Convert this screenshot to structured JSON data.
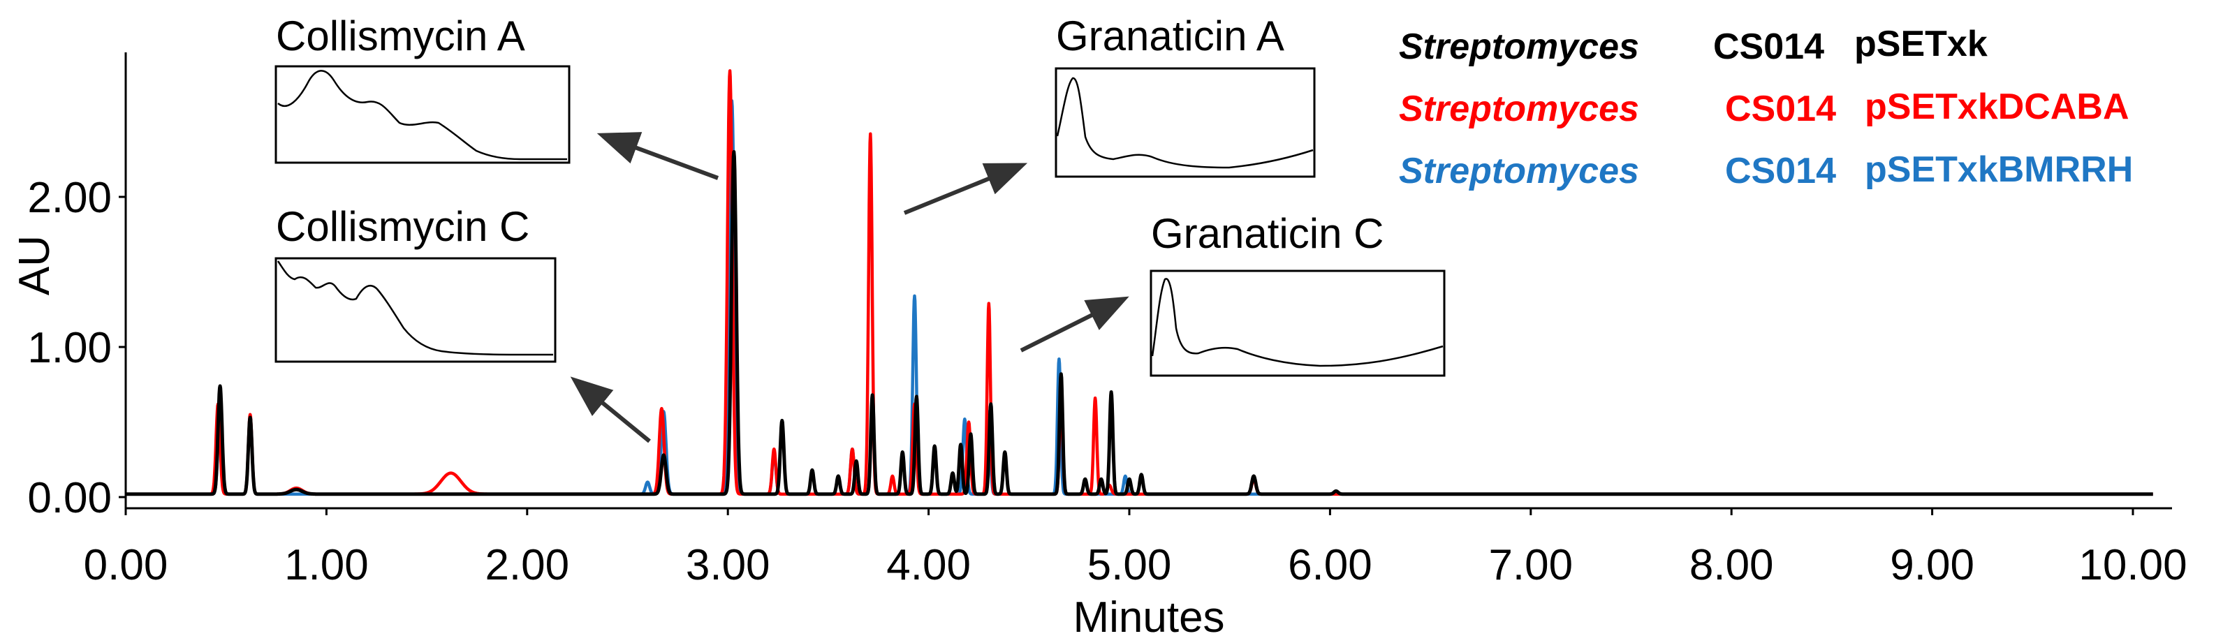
{
  "chart_data": {
    "type": "line",
    "title": "",
    "xlabel": "Minutes",
    "ylabel": "AU",
    "xlim": [
      0,
      10.1
    ],
    "ylim": [
      -0.05,
      2.95
    ],
    "x_ticks": [
      "0.00",
      "1.00",
      "2.00",
      "3.00",
      "4.00",
      "5.00",
      "6.00",
      "7.00",
      "8.00",
      "9.00",
      "10.00"
    ],
    "y_ticks": [
      "0.00",
      "1.00",
      "2.00"
    ],
    "grid": false,
    "legend": {
      "position": "top-right",
      "entries": [
        {
          "genus": "Streptomyces",
          "strain": "CS014",
          "plasmid": "pSETxk",
          "color": "#000000"
        },
        {
          "genus": "Streptomyces",
          "strain": "CS014",
          "plasmid": "pSETxkDCABA",
          "color": "#ff0000"
        },
        {
          "genus": "Streptomyces",
          "strain": "CS014",
          "plasmid": "pSETxkBMRRH",
          "color": "#1f77c4"
        }
      ]
    },
    "series": [
      {
        "name": "Streptomyces CS014 pSETxkBMRRH",
        "color": "#1f77c4",
        "baseline": 0.02,
        "peaks": [
          {
            "x": 0.47,
            "h": 0.62,
            "w": 0.01
          },
          {
            "x": 0.62,
            "h": 0.52,
            "w": 0.009
          },
          {
            "x": 2.6,
            "h": 0.08,
            "w": 0.01
          },
          {
            "x": 2.68,
            "h": 0.55,
            "w": 0.012
          },
          {
            "x": 3.02,
            "h": 2.62,
            "w": 0.012
          },
          {
            "x": 3.23,
            "h": 0.28,
            "w": 0.009
          },
          {
            "x": 3.62,
            "h": 0.3,
            "w": 0.009
          },
          {
            "x": 3.72,
            "h": 0.62,
            "w": 0.008
          },
          {
            "x": 3.93,
            "h": 1.32,
            "w": 0.009
          },
          {
            "x": 4.18,
            "h": 0.5,
            "w": 0.009
          },
          {
            "x": 4.3,
            "h": 0.55,
            "w": 0.008
          },
          {
            "x": 4.65,
            "h": 0.9,
            "w": 0.008
          },
          {
            "x": 4.98,
            "h": 0.12,
            "w": 0.008
          }
        ]
      },
      {
        "name": "Streptomyces CS014 pSETxkDCABA",
        "color": "#ff0000",
        "baseline": 0.02,
        "peaks": [
          {
            "x": 0.46,
            "h": 0.6,
            "w": 0.01
          },
          {
            "x": 0.62,
            "h": 0.53,
            "w": 0.009
          },
          {
            "x": 0.85,
            "h": 0.04,
            "w": 0.03
          },
          {
            "x": 1.62,
            "h": 0.14,
            "w": 0.05
          },
          {
            "x": 2.67,
            "h": 0.57,
            "w": 0.012
          },
          {
            "x": 3.01,
            "h": 2.82,
            "w": 0.012
          },
          {
            "x": 3.23,
            "h": 0.3,
            "w": 0.009
          },
          {
            "x": 3.62,
            "h": 0.3,
            "w": 0.009
          },
          {
            "x": 3.71,
            "h": 2.4,
            "w": 0.009
          },
          {
            "x": 3.82,
            "h": 0.12,
            "w": 0.008
          },
          {
            "x": 3.93,
            "h": 0.6,
            "w": 0.009
          },
          {
            "x": 4.2,
            "h": 0.48,
            "w": 0.009
          },
          {
            "x": 4.3,
            "h": 1.27,
            "w": 0.008
          },
          {
            "x": 4.66,
            "h": 0.62,
            "w": 0.008
          },
          {
            "x": 4.83,
            "h": 0.64,
            "w": 0.008
          },
          {
            "x": 4.9,
            "h": 0.06,
            "w": 0.01
          },
          {
            "x": 5.62,
            "h": 0.1,
            "w": 0.01
          }
        ]
      },
      {
        "name": "Streptomyces CS014 pSETxk",
        "color": "#000000",
        "baseline": 0.02,
        "peaks": [
          {
            "x": 0.47,
            "h": 0.72,
            "w": 0.01
          },
          {
            "x": 0.62,
            "h": 0.51,
            "w": 0.009
          },
          {
            "x": 0.85,
            "h": 0.03,
            "w": 0.03
          },
          {
            "x": 2.68,
            "h": 0.26,
            "w": 0.012
          },
          {
            "x": 3.03,
            "h": 2.28,
            "w": 0.012
          },
          {
            "x": 3.27,
            "h": 0.49,
            "w": 0.009
          },
          {
            "x": 3.42,
            "h": 0.16,
            "w": 0.008
          },
          {
            "x": 3.55,
            "h": 0.12,
            "w": 0.008
          },
          {
            "x": 3.64,
            "h": 0.22,
            "w": 0.008
          },
          {
            "x": 3.72,
            "h": 0.66,
            "w": 0.008
          },
          {
            "x": 3.87,
            "h": 0.28,
            "w": 0.008
          },
          {
            "x": 3.94,
            "h": 0.65,
            "w": 0.008
          },
          {
            "x": 4.03,
            "h": 0.32,
            "w": 0.008
          },
          {
            "x": 4.12,
            "h": 0.14,
            "w": 0.008
          },
          {
            "x": 4.16,
            "h": 0.33,
            "w": 0.008
          },
          {
            "x": 4.21,
            "h": 0.4,
            "w": 0.008
          },
          {
            "x": 4.31,
            "h": 0.6,
            "w": 0.008
          },
          {
            "x": 4.38,
            "h": 0.28,
            "w": 0.008
          },
          {
            "x": 4.66,
            "h": 0.8,
            "w": 0.008
          },
          {
            "x": 4.78,
            "h": 0.1,
            "w": 0.008
          },
          {
            "x": 4.86,
            "h": 0.1,
            "w": 0.008
          },
          {
            "x": 4.91,
            "h": 0.68,
            "w": 0.008
          },
          {
            "x": 5.0,
            "h": 0.1,
            "w": 0.008
          },
          {
            "x": 5.06,
            "h": 0.13,
            "w": 0.008
          },
          {
            "x": 5.62,
            "h": 0.12,
            "w": 0.01
          },
          {
            "x": 6.03,
            "h": 0.02,
            "w": 0.01
          }
        ]
      }
    ],
    "annotations": [
      {
        "label": "Collismycin A",
        "points_to_x": 3.02,
        "spectrum": "collismycin_a"
      },
      {
        "label": "Collismycin C",
        "points_to_x": 2.62,
        "spectrum": "collismycin_c"
      },
      {
        "label": "Granaticin A",
        "points_to_x": 3.72,
        "spectrum": "granaticin_a"
      },
      {
        "label": "Granaticin C",
        "points_to_x": 4.3,
        "spectrum": "granaticin_c"
      }
    ]
  }
}
